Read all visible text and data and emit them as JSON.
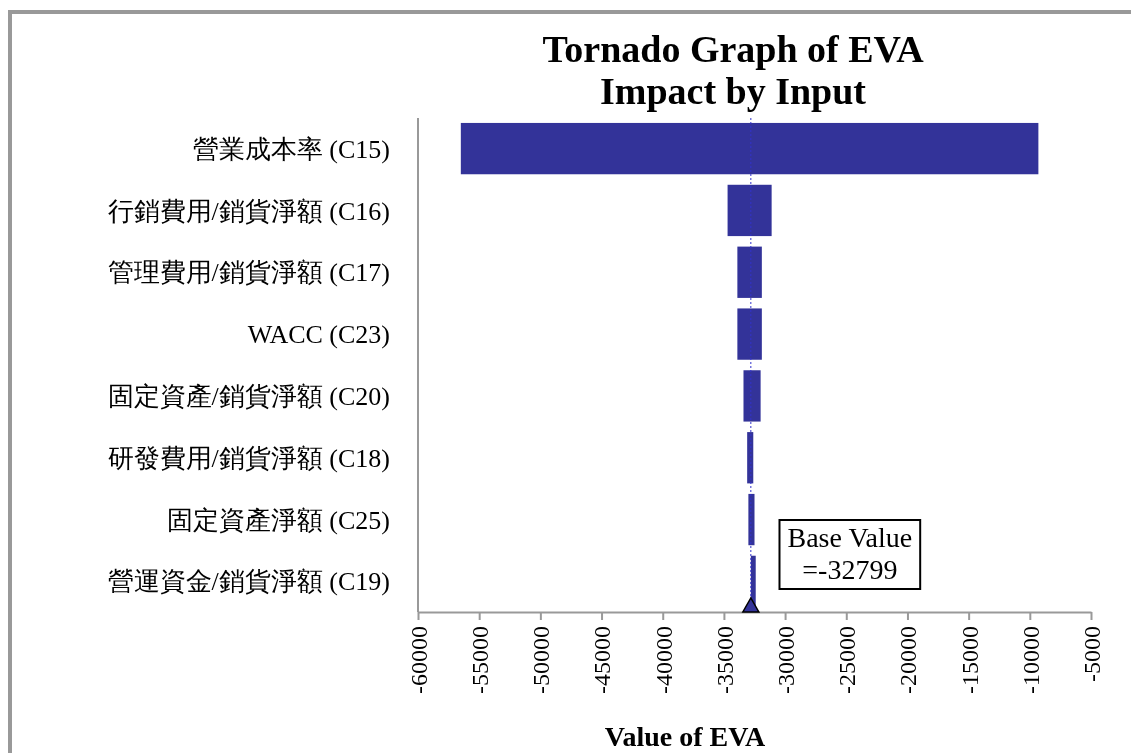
{
  "chart_data": {
    "type": "bar",
    "orientation": "horizontal",
    "title": "Tornado Graph of EVA Impact by Input",
    "xlabel": "Value of EVA",
    "categories": [
      "營業成本率 (C15)",
      "行銷費用/銷貨淨額 (C16)",
      "管理費用/銷貨淨額 (C17)",
      "WACC (C23)",
      "固定資產/銷貨淨額 (C20)",
      "研發費用/銷貨淨額 (C18)",
      "固定資產淨額 (C25)",
      "營運資金/銷貨淨額 (C19)"
    ],
    "base": [
      -56500,
      -34700,
      -33900,
      -33900,
      -33400,
      -33100,
      -33000,
      -32800
    ],
    "values": [
      47200,
      3600,
      2000,
      2000,
      1400,
      500,
      500,
      400
    ],
    "color": "#333399",
    "xlim": [
      -60000,
      -5000
    ],
    "xticks": [
      -60000,
      -55000,
      -50000,
      -45000,
      -40000,
      -35000,
      -30000,
      -25000,
      -20000,
      -15000,
      -10000,
      -5000
    ],
    "ref_lines": [
      {
        "axis": "x",
        "value": -32799,
        "label": "Base Value =-32799",
        "color": "#3333cc",
        "line_style": "dotted"
      }
    ],
    "grid": false
  }
}
